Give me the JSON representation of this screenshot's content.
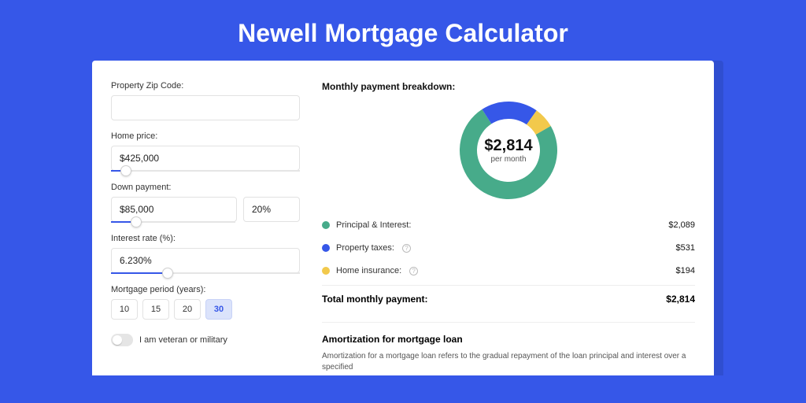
{
  "page": {
    "title": "Newell Mortgage Calculator",
    "background_color": "#3657e8",
    "shadow_color": "#2f4ed0",
    "card_background": "#ffffff"
  },
  "form": {
    "zip": {
      "label": "Property Zip Code:",
      "value": ""
    },
    "home_price": {
      "label": "Home price:",
      "value": "$425,000",
      "slider_pct": 8
    },
    "down_payment": {
      "label": "Down payment:",
      "amount": "$85,000",
      "percent": "20%",
      "slider_pct": 20
    },
    "interest_rate": {
      "label": "Interest rate (%):",
      "value": "6.230%",
      "slider_pct": 30
    },
    "period": {
      "label": "Mortgage period (years):",
      "options": [
        "10",
        "15",
        "20",
        "30"
      ],
      "selected": "30"
    },
    "veteran": {
      "label": "I am veteran or military",
      "on": false
    }
  },
  "breakdown": {
    "title": "Monthly payment breakdown:",
    "center_value": "$2,814",
    "center_label": "per month",
    "donut": {
      "size": 124,
      "thickness": 22,
      "segments": [
        {
          "name": "Principal & Interest",
          "value": 2089,
          "color": "#47ab8a",
          "label": "Principal & Interest:",
          "display": "$2,089",
          "has_info": false
        },
        {
          "name": "Property taxes",
          "value": 531,
          "color": "#3657e8",
          "label": "Property taxes:",
          "display": "$531",
          "has_info": true
        },
        {
          "name": "Home insurance",
          "value": 194,
          "color": "#f2c94c",
          "label": "Home insurance:",
          "display": "$194",
          "has_info": true
        }
      ],
      "start_angle_deg": -30
    },
    "total": {
      "label": "Total monthly payment:",
      "value": "$2,814"
    }
  },
  "amortization": {
    "title": "Amortization for mortgage loan",
    "text": "Amortization for a mortgage loan refers to the gradual repayment of the loan principal and interest over a specified"
  }
}
